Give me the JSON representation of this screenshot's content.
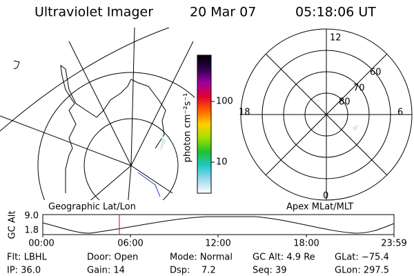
{
  "header": {
    "title": "Ultraviolet Imager",
    "date": "20 Mar 07",
    "time": "05:18:06 UT"
  },
  "colorbar": {
    "label": "photon cm⁻²s⁻¹",
    "ticks": [
      "100",
      "10"
    ]
  },
  "polar": {
    "mlt_labels": [
      "12",
      "6",
      "0",
      "18"
    ],
    "lat_labels": [
      "60",
      "70",
      "80"
    ]
  },
  "timeline": {
    "left_label": "Geographic Lat/Lon",
    "right_label": "Apex MLat/MLT",
    "axis_label": "GC Alt",
    "y_labels": [
      "9.0",
      "1.8"
    ],
    "time_labels": [
      "00:00",
      "06:00",
      "12:00",
      "18:00",
      "23:59"
    ]
  },
  "footer": {
    "rows": [
      [
        "Flt: LBHL",
        "Door: Open",
        "Mode: Normal",
        "GC Alt: 4.9 Re",
        "GLat: −75.4"
      ],
      [
        "IP: 36.0",
        "Gain: 14",
        "Dsp:    7.2",
        "Seq: 39",
        "GLon: 297.5"
      ]
    ]
  }
}
